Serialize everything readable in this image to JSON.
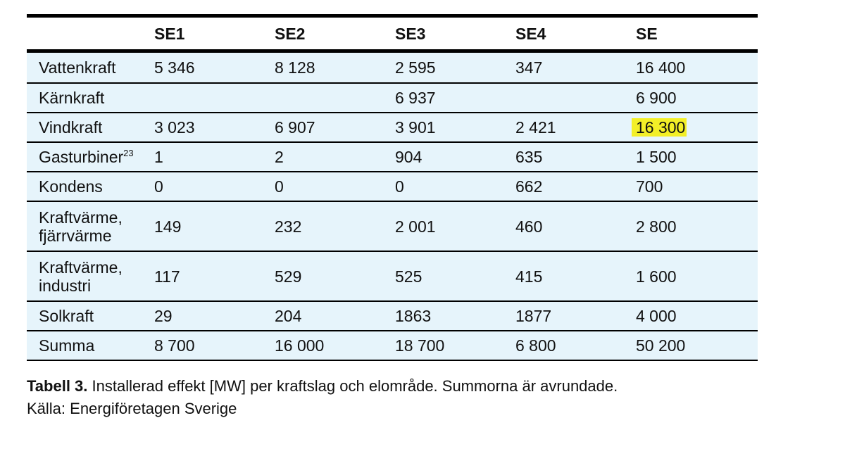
{
  "table": {
    "headers": [
      "",
      "SE1",
      "SE2",
      "SE3",
      "SE4",
      "SE"
    ],
    "rows": [
      {
        "label": "Vattenkraft",
        "sup": "",
        "values": [
          "5 346",
          "8 128",
          "2 595",
          "347",
          "16 400"
        ]
      },
      {
        "label": "Kärnkraft",
        "sup": "",
        "values": [
          "",
          "",
          "6 937",
          "",
          "6 900"
        ]
      },
      {
        "label": "Vindkraft",
        "sup": "",
        "values": [
          "3 023",
          "6 907",
          "3 901",
          "2 421",
          "16 300"
        ]
      },
      {
        "label": "Gasturbiner",
        "sup": "23",
        "values": [
          "1",
          "2",
          "904",
          "635",
          "1 500"
        ]
      },
      {
        "label": "Kondens",
        "sup": "",
        "values": [
          "0",
          "0",
          "0",
          "662",
          "700"
        ]
      },
      {
        "label_line1": "Kraftvärme,",
        "label_line2": "fjärrvärme",
        "values": [
          "149",
          "232",
          "2 001",
          "460",
          "2 800"
        ]
      },
      {
        "label_line1": "Kraftvärme,",
        "label_line2": "industri",
        "values": [
          "117",
          "529",
          "525",
          "415",
          "1 600"
        ]
      },
      {
        "label": "Solkraft",
        "sup": "",
        "values": [
          "29",
          "204",
          "1863",
          "1877",
          "4 000"
        ]
      },
      {
        "label": "Summa",
        "sup": "",
        "values": [
          "8 700",
          "16 000",
          "18 700",
          "6 800",
          "50 200"
        ]
      }
    ],
    "highlight_color": "#f3ef27",
    "row_background": "#e6f4fb"
  },
  "caption": {
    "bold_label": "Tabell 3.",
    "text": " Installerad effekt [MW] per kraftslag och elområde. Summorna är avrundade.",
    "source": "Källa: Energiföretagen Sverige"
  }
}
